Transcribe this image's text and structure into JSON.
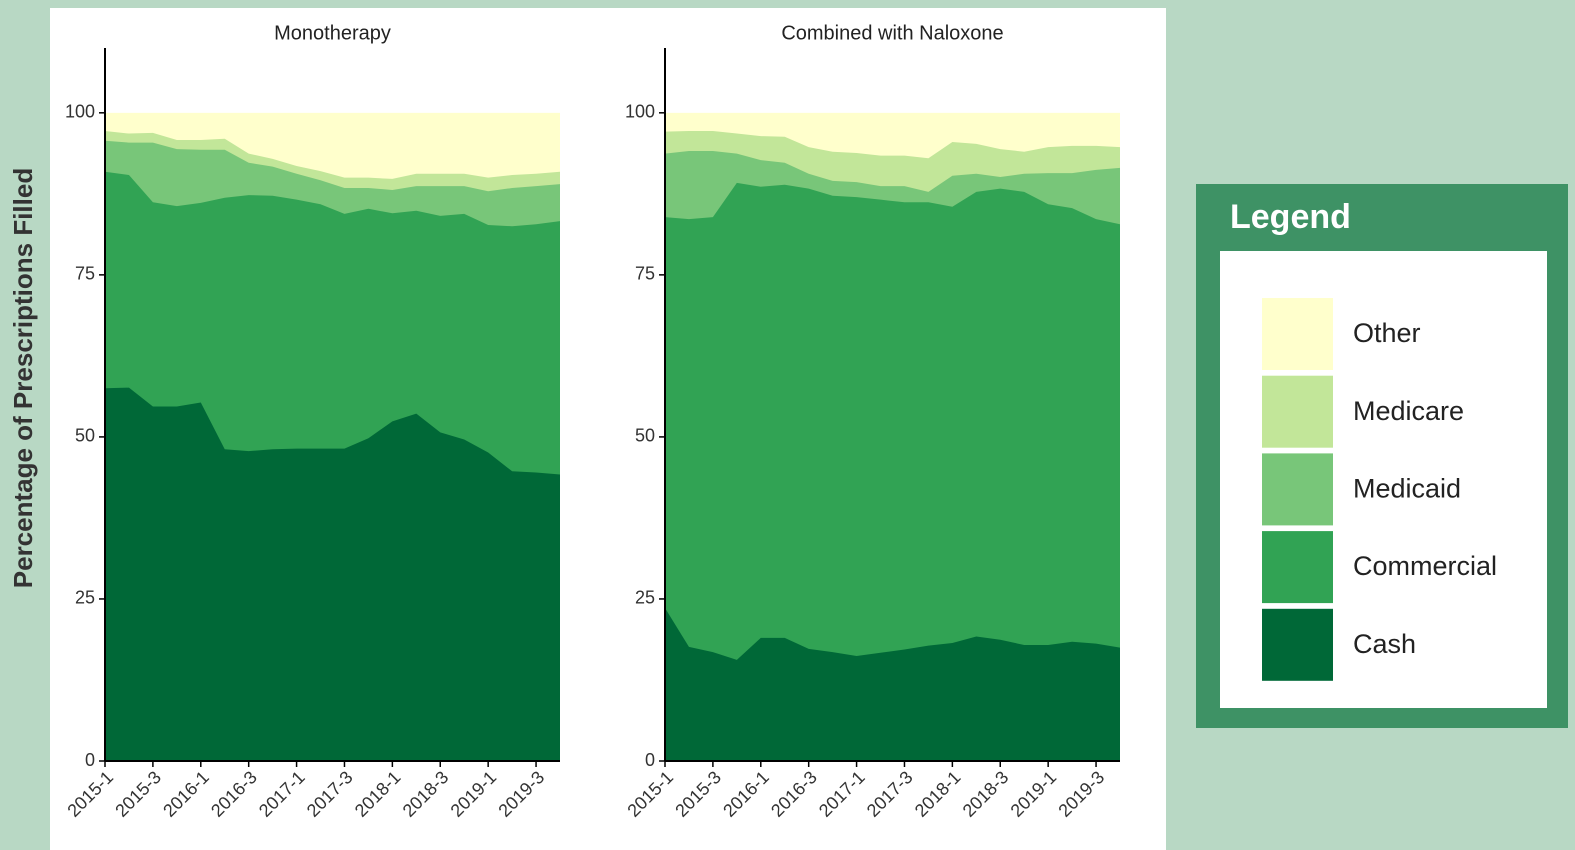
{
  "chart_data": [
    {
      "type": "stacked_area",
      "title": "Monotherapy",
      "ylabel": "Percentage of Prescriptions Filled",
      "categories": [
        "2015-1",
        null,
        "2015-3",
        null,
        "2016-1",
        null,
        "2016-3",
        null,
        "2017-1",
        null,
        "2017-3",
        null,
        "2018-1",
        null,
        "2018-3",
        null,
        "2019-1",
        null,
        "2019-3",
        null
      ],
      "ylim": [
        0,
        110
      ],
      "yticks": [
        0,
        25,
        50,
        75,
        100
      ],
      "series": [
        {
          "name": "Cash",
          "color": "#006837",
          "values": [
            57.5,
            57.6,
            54.7,
            54.7,
            55.3,
            48.1,
            47.8,
            48.1,
            48.2,
            48.2,
            48.2,
            49.8,
            52.4,
            53.6,
            50.7,
            49.6,
            47.6,
            44.7,
            44.5,
            44.2
          ]
        },
        {
          "name": "Commercial",
          "color": "#31a354",
          "values": [
            33.4,
            32.8,
            31.5,
            30.9,
            30.8,
            38.8,
            39.5,
            39.1,
            38.4,
            37.7,
            36.2,
            35.4,
            32.1,
            31.3,
            33.4,
            34.8,
            35.1,
            37.8,
            38.3,
            39.1
          ]
        },
        {
          "name": "Medicaid",
          "color": "#78c679",
          "values": [
            4.8,
            5.0,
            9.2,
            8.8,
            8.2,
            7.4,
            5.0,
            4.5,
            4.0,
            3.7,
            4.0,
            3.2,
            3.6,
            3.8,
            4.6,
            4.3,
            5.2,
            5.9,
            5.9,
            5.7
          ]
        },
        {
          "name": "Medicare",
          "color": "#c2e699",
          "values": [
            1.5,
            1.4,
            1.5,
            1.4,
            1.5,
            1.7,
            1.4,
            1.2,
            1.2,
            1.4,
            1.6,
            1.6,
            1.7,
            1.9,
            1.9,
            1.9,
            2.1,
            2.0,
            1.9,
            1.9
          ]
        },
        {
          "name": "Other",
          "color": "#ffffcc",
          "values": [
            2.8,
            3.2,
            3.1,
            4.2,
            4.2,
            4.0,
            6.3,
            7.1,
            8.2,
            9.0,
            10.0,
            10.0,
            10.2,
            9.4,
            9.4,
            9.4,
            10.0,
            9.6,
            9.4,
            9.1
          ]
        }
      ]
    },
    {
      "type": "stacked_area",
      "title": "Combined with Naloxone",
      "categories": [
        "2015-1",
        null,
        "2015-3",
        null,
        "2016-1",
        null,
        "2016-3",
        null,
        "2017-1",
        null,
        "2017-3",
        null,
        "2018-1",
        null,
        "2018-3",
        null,
        "2019-1",
        null,
        "2019-3",
        null
      ],
      "ylim": [
        0,
        110
      ],
      "yticks": [
        0,
        25,
        50,
        75,
        100
      ],
      "series": [
        {
          "name": "Cash",
          "color": "#006837",
          "values": [
            23.6,
            17.6,
            16.8,
            15.6,
            19.0,
            19.0,
            17.3,
            16.8,
            16.2,
            16.7,
            17.2,
            17.8,
            18.2,
            19.2,
            18.7,
            17.9,
            17.9,
            18.4,
            18.1,
            17.5
          ]
        },
        {
          "name": "Commercial",
          "color": "#31a354",
          "values": [
            60.3,
            66.0,
            67.1,
            73.6,
            69.6,
            69.9,
            71.0,
            70.4,
            70.8,
            69.9,
            69.0,
            68.4,
            67.3,
            68.6,
            69.6,
            69.9,
            68.0,
            66.9,
            65.5,
            65.3
          ]
        },
        {
          "name": "Medicaid",
          "color": "#78c679",
          "values": [
            9.8,
            10.5,
            10.2,
            4.5,
            4.1,
            3.4,
            2.3,
            2.3,
            2.3,
            2.1,
            2.5,
            1.6,
            4.8,
            2.8,
            1.8,
            2.8,
            4.8,
            5.4,
            7.6,
            8.7
          ]
        },
        {
          "name": "Medicare",
          "color": "#c2e699",
          "values": [
            3.4,
            3.1,
            3.1,
            3.1,
            3.7,
            4.0,
            4.1,
            4.5,
            4.5,
            4.7,
            4.7,
            5.2,
            5.2,
            4.6,
            4.3,
            3.4,
            4.0,
            4.2,
            3.7,
            3.2
          ]
        },
        {
          "name": "Other",
          "color": "#ffffcc",
          "values": [
            2.9,
            2.8,
            2.8,
            3.2,
            3.6,
            3.7,
            5.3,
            6.0,
            6.2,
            6.6,
            6.6,
            7.0,
            4.5,
            4.8,
            5.6,
            6.0,
            5.3,
            5.1,
            5.1,
            5.3
          ]
        }
      ]
    }
  ],
  "legend": {
    "title": "Legend"
  }
}
